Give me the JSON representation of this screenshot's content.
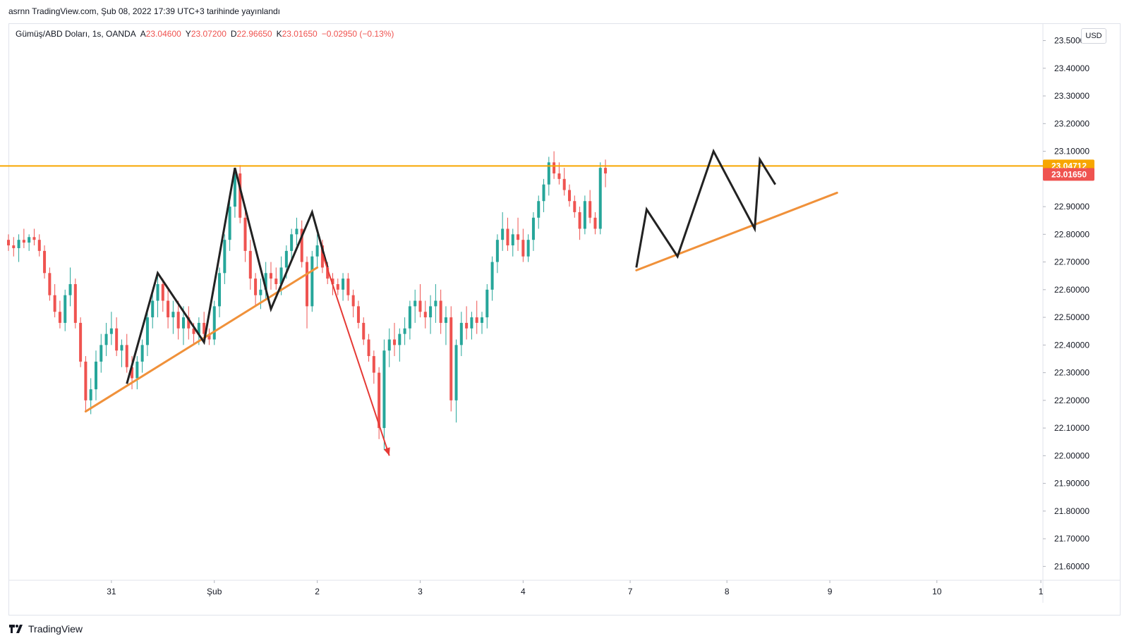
{
  "header": {
    "published": "asrnn TradingView.com, Şub 08, 2022 17:39 UTC+3 tarihinde yayınlandı"
  },
  "legend": {
    "symbol": "Gümüş/ABD Doları, 1s, OANDA",
    "open_label": "A",
    "open": "23.04600",
    "high_label": "Y",
    "high": "23.07200",
    "low_label": "D",
    "low": "22.96650",
    "close_label": "K",
    "close": "23.01650",
    "change": "−0.02950 (−0.13%)"
  },
  "currency_button": "USD",
  "brand": {
    "name": "TradingView"
  },
  "colors": {
    "up": "#26a69a",
    "down": "#ef5350",
    "level_line": "#f7a600",
    "trendline": "#f0913a",
    "pattern": "#222222",
    "arrow": "#e53935",
    "last_price_bg": "#ef5350",
    "level_bg": "#f7a600"
  },
  "chart_data": {
    "type": "candlestick",
    "symbol": "XAG/USD",
    "timeframe": "1s",
    "ylim": [
      21.55,
      23.56
    ],
    "y_ticks": [
      "23.50000",
      "23.40000",
      "23.30000",
      "23.20000",
      "23.10000",
      "22.90000",
      "22.80000",
      "22.70000",
      "22.60000",
      "22.50000",
      "22.40000",
      "22.30000",
      "22.20000",
      "22.10000",
      "22.00000",
      "21.90000",
      "21.80000",
      "21.70000",
      "21.60000"
    ],
    "x_ticks": [
      {
        "label": "31",
        "t": 1.0
      },
      {
        "label": "Şub",
        "t": 2.0
      },
      {
        "label": "2",
        "t": 3.0
      },
      {
        "label": "3",
        "t": 4.0
      },
      {
        "label": "4",
        "t": 5.0
      },
      {
        "label": "7",
        "t": 6.04
      },
      {
        "label": "8",
        "t": 6.98
      },
      {
        "label": "9",
        "t": 7.98
      },
      {
        "label": "10",
        "t": 9.02
      },
      {
        "label": "1",
        "t": 10.03
      }
    ],
    "x_domain": [
      0.0,
      10.05
    ],
    "horizontal_level": {
      "value": 23.04712,
      "label": "23.04712"
    },
    "last_price": {
      "value": 23.0165,
      "label": "23.01650"
    },
    "candles": [
      [
        0.0,
        22.78,
        22.8,
        22.74,
        22.76
      ],
      [
        0.05,
        22.76,
        22.79,
        22.72,
        22.75
      ],
      [
        0.1,
        22.75,
        22.8,
        22.7,
        22.78
      ],
      [
        0.15,
        22.78,
        22.82,
        22.75,
        22.77
      ],
      [
        0.2,
        22.77,
        22.8,
        22.74,
        22.79
      ],
      [
        0.25,
        22.79,
        22.82,
        22.76,
        22.78
      ],
      [
        0.3,
        22.78,
        22.8,
        22.72,
        22.74
      ],
      [
        0.35,
        22.74,
        22.76,
        22.64,
        22.66
      ],
      [
        0.4,
        22.66,
        22.68,
        22.56,
        22.58
      ],
      [
        0.45,
        22.58,
        22.62,
        22.5,
        22.52
      ],
      [
        0.5,
        22.52,
        22.56,
        22.46,
        22.48
      ],
      [
        0.55,
        22.48,
        22.6,
        22.45,
        22.58
      ],
      [
        0.6,
        22.58,
        22.68,
        22.54,
        22.62
      ],
      [
        0.65,
        22.62,
        22.64,
        22.46,
        22.48
      ],
      [
        0.7,
        22.48,
        22.5,
        22.32,
        22.34
      ],
      [
        0.75,
        22.34,
        22.36,
        22.16,
        22.2
      ],
      [
        0.8,
        22.2,
        22.28,
        22.15,
        22.24
      ],
      [
        0.85,
        22.24,
        22.38,
        22.2,
        22.34
      ],
      [
        0.9,
        22.34,
        22.44,
        22.3,
        22.4
      ],
      [
        0.95,
        22.4,
        22.48,
        22.36,
        22.44
      ],
      [
        1.0,
        22.44,
        22.52,
        22.4,
        22.46
      ],
      [
        1.05,
        22.46,
        22.5,
        22.36,
        22.38
      ],
      [
        1.1,
        22.38,
        22.42,
        22.32,
        22.4
      ],
      [
        1.15,
        22.4,
        22.44,
        22.3,
        22.32
      ],
      [
        1.2,
        22.32,
        22.36,
        22.24,
        22.28
      ],
      [
        1.25,
        22.28,
        22.36,
        22.24,
        22.34
      ],
      [
        1.3,
        22.34,
        22.42,
        22.3,
        22.4
      ],
      [
        1.35,
        22.4,
        22.52,
        22.36,
        22.5
      ],
      [
        1.4,
        22.5,
        22.6,
        22.46,
        22.56
      ],
      [
        1.45,
        22.56,
        22.66,
        22.5,
        22.62
      ],
      [
        1.5,
        22.62,
        22.64,
        22.52,
        22.56
      ],
      [
        1.55,
        22.56,
        22.6,
        22.46,
        22.5
      ],
      [
        1.6,
        22.5,
        22.56,
        22.44,
        22.52
      ],
      [
        1.65,
        22.52,
        22.56,
        22.42,
        22.46
      ],
      [
        1.7,
        22.46,
        22.54,
        22.4,
        22.5
      ],
      [
        1.75,
        22.5,
        22.54,
        22.42,
        22.46
      ],
      [
        1.8,
        22.46,
        22.48,
        22.4,
        22.44
      ],
      [
        1.85,
        22.44,
        22.5,
        22.4,
        22.48
      ],
      [
        1.9,
        22.48,
        22.52,
        22.42,
        22.44
      ],
      [
        1.95,
        22.44,
        22.46,
        22.4,
        22.42
      ],
      [
        2.0,
        22.42,
        22.56,
        22.4,
        22.54
      ],
      [
        2.05,
        22.54,
        22.68,
        22.5,
        22.66
      ],
      [
        2.1,
        22.66,
        22.8,
        22.62,
        22.78
      ],
      [
        2.15,
        22.78,
        22.92,
        22.74,
        22.9
      ],
      [
        2.2,
        22.9,
        23.04,
        22.86,
        23.02
      ],
      [
        2.25,
        23.02,
        23.05,
        22.84,
        22.86
      ],
      [
        2.3,
        22.86,
        22.9,
        22.7,
        22.74
      ],
      [
        2.35,
        22.74,
        22.78,
        22.6,
        22.64
      ],
      [
        2.4,
        22.64,
        22.66,
        22.54,
        22.58
      ],
      [
        2.45,
        22.58,
        22.64,
        22.53,
        22.6
      ],
      [
        2.5,
        22.6,
        22.7,
        22.56,
        22.66
      ],
      [
        2.55,
        22.66,
        22.7,
        22.6,
        22.64
      ],
      [
        2.6,
        22.64,
        22.68,
        22.6,
        22.62
      ],
      [
        2.65,
        22.62,
        22.72,
        22.58,
        22.68
      ],
      [
        2.7,
        22.68,
        22.76,
        22.64,
        22.74
      ],
      [
        2.75,
        22.74,
        22.82,
        22.7,
        22.8
      ],
      [
        2.8,
        22.8,
        22.86,
        22.76,
        22.82
      ],
      [
        2.85,
        22.82,
        22.85,
        22.68,
        22.7
      ],
      [
        2.9,
        22.7,
        22.72,
        22.46,
        22.54
      ],
      [
        2.95,
        22.54,
        22.74,
        22.52,
        22.72
      ],
      [
        3.0,
        22.72,
        22.8,
        22.68,
        22.76
      ],
      [
        3.05,
        22.76,
        22.78,
        22.66,
        22.68
      ],
      [
        3.1,
        22.68,
        22.7,
        22.62,
        22.64
      ],
      [
        3.15,
        22.64,
        22.66,
        22.58,
        22.62
      ],
      [
        3.2,
        22.62,
        22.64,
        22.58,
        22.6
      ],
      [
        3.25,
        22.6,
        22.66,
        22.56,
        22.64
      ],
      [
        3.3,
        22.64,
        22.66,
        22.56,
        22.58
      ],
      [
        3.35,
        22.58,
        22.6,
        22.5,
        22.54
      ],
      [
        3.4,
        22.54,
        22.56,
        22.46,
        22.48
      ],
      [
        3.45,
        22.48,
        22.5,
        22.4,
        22.42
      ],
      [
        3.5,
        22.42,
        22.44,
        22.34,
        22.36
      ],
      [
        3.55,
        22.36,
        22.38,
        22.26,
        22.3
      ],
      [
        3.6,
        22.3,
        22.32,
        22.06,
        22.1
      ],
      [
        3.65,
        22.1,
        22.42,
        22.02,
        22.38
      ],
      [
        3.7,
        22.38,
        22.46,
        22.32,
        22.42
      ],
      [
        3.75,
        22.42,
        22.48,
        22.36,
        22.4
      ],
      [
        3.8,
        22.4,
        22.46,
        22.34,
        22.44
      ],
      [
        3.85,
        22.44,
        22.5,
        22.4,
        22.46
      ],
      [
        3.9,
        22.46,
        22.56,
        22.42,
        22.54
      ],
      [
        3.95,
        22.54,
        22.6,
        22.48,
        22.56
      ],
      [
        4.0,
        22.56,
        22.62,
        22.5,
        22.52
      ],
      [
        4.05,
        22.52,
        22.56,
        22.46,
        22.5
      ],
      [
        4.1,
        22.5,
        22.58,
        22.44,
        22.54
      ],
      [
        4.15,
        22.54,
        22.62,
        22.48,
        22.56
      ],
      [
        4.2,
        22.56,
        22.6,
        22.44,
        22.48
      ],
      [
        4.25,
        22.48,
        22.54,
        22.4,
        22.5
      ],
      [
        4.3,
        22.5,
        22.54,
        22.16,
        22.2
      ],
      [
        4.35,
        22.2,
        22.42,
        22.12,
        22.4
      ],
      [
        4.4,
        22.4,
        22.52,
        22.36,
        22.48
      ],
      [
        4.45,
        22.48,
        22.54,
        22.42,
        22.46
      ],
      [
        4.5,
        22.46,
        22.52,
        22.42,
        22.5
      ],
      [
        4.55,
        22.5,
        22.56,
        22.44,
        22.48
      ],
      [
        4.6,
        22.48,
        22.52,
        22.44,
        22.5
      ],
      [
        4.65,
        22.5,
        22.62,
        22.46,
        22.6
      ],
      [
        4.7,
        22.6,
        22.72,
        22.56,
        22.7
      ],
      [
        4.75,
        22.7,
        22.8,
        22.66,
        22.78
      ],
      [
        4.8,
        22.78,
        22.88,
        22.74,
        22.82
      ],
      [
        4.85,
        22.82,
        22.86,
        22.74,
        22.76
      ],
      [
        4.9,
        22.76,
        22.82,
        22.72,
        22.8
      ],
      [
        4.95,
        22.8,
        22.86,
        22.74,
        22.78
      ],
      [
        5.0,
        22.78,
        22.82,
        22.7,
        22.72
      ],
      [
        5.05,
        22.72,
        22.8,
        22.7,
        22.78
      ],
      [
        5.1,
        22.78,
        22.88,
        22.74,
        22.86
      ],
      [
        5.15,
        22.86,
        22.94,
        22.82,
        22.92
      ],
      [
        5.2,
        22.92,
        23.0,
        22.88,
        22.98
      ],
      [
        5.25,
        22.98,
        23.08,
        22.94,
        23.06
      ],
      [
        5.3,
        23.06,
        23.1,
        23.0,
        23.02
      ],
      [
        5.35,
        23.02,
        23.06,
        22.98,
        23.0
      ],
      [
        5.4,
        23.0,
        23.04,
        22.94,
        22.96
      ],
      [
        5.45,
        22.96,
        22.98,
        22.9,
        22.92
      ],
      [
        5.5,
        22.92,
        22.94,
        22.86,
        22.88
      ],
      [
        5.55,
        22.88,
        22.9,
        22.78,
        22.82
      ],
      [
        5.6,
        22.82,
        22.94,
        22.8,
        22.92
      ],
      [
        5.65,
        22.92,
        22.96,
        22.84,
        22.86
      ],
      [
        5.7,
        22.86,
        22.88,
        22.8,
        22.82
      ],
      [
        5.75,
        22.82,
        23.06,
        22.8,
        23.04
      ],
      [
        5.8,
        23.04,
        23.07,
        22.97,
        23.02
      ]
    ],
    "drawings": {
      "horizontal_line": {
        "value": 23.04712,
        "t_start": -0.1,
        "t_end": 10.05
      },
      "trendlines": [
        {
          "points": [
            [
              0.75,
              22.16
            ],
            [
              3.0,
              22.68
            ]
          ]
        },
        {
          "points": [
            [
              6.1,
              22.67
            ],
            [
              8.05,
              22.95
            ]
          ]
        }
      ],
      "patterns": [
        {
          "points": [
            [
              1.15,
              22.26
            ],
            [
              1.45,
              22.66
            ],
            [
              1.9,
              22.41
            ],
            [
              2.2,
              23.04
            ],
            [
              2.55,
              22.53
            ],
            [
              2.95,
              22.88
            ],
            [
              3.1,
              22.68
            ]
          ]
        },
        {
          "points": [
            [
              6.1,
              22.68
            ],
            [
              6.2,
              22.89
            ],
            [
              6.5,
              22.72
            ],
            [
              6.85,
              23.1
            ],
            [
              7.25,
              22.82
            ],
            [
              7.3,
              23.07
            ],
            [
              7.45,
              22.98
            ]
          ]
        }
      ],
      "arrow": {
        "from": [
          3.05,
          22.73
        ],
        "to": [
          3.7,
          22.0
        ]
      }
    }
  }
}
